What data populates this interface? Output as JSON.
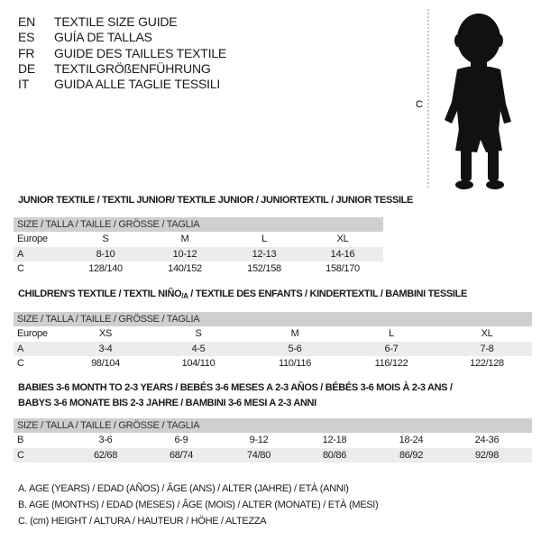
{
  "languages": [
    {
      "code": "EN",
      "text": "TEXTILE SIZE GUIDE"
    },
    {
      "code": "ES",
      "text": "GUÍA DE TALLAS"
    },
    {
      "code": "FR",
      "text": "GUIDE DES TAILLES TEXTILE"
    },
    {
      "code": "DE",
      "text": "TEXTILGRÖßENFÜHRUNG"
    },
    {
      "code": "IT",
      "text": "GUIDA ALLE TAGLIE TESSILI"
    }
  ],
  "figure": {
    "measure_label": "C",
    "icon": "child-silhouette"
  },
  "junior": {
    "title": "JUNIOR TEXTILE / TEXTIL JUNIOR/ TEXTILE JUNIOR / JUNIORTEXTIL / JUNIOR TESSILE",
    "header": "SIZE / TALLA / TAILLE / GRÖSSE / TAGLIA",
    "rows": [
      {
        "label": "Europe",
        "values": [
          "S",
          "M",
          "L",
          "XL"
        ]
      },
      {
        "label": "A",
        "values": [
          "8-10",
          "10-12",
          "12-13",
          "14-16"
        ]
      },
      {
        "label": "C",
        "values": [
          "128/140",
          "140/152",
          "152/158",
          "158/170"
        ]
      }
    ]
  },
  "children": {
    "title_a": "CHILDREN'S TEXTILE / TEXTIL NIÑO",
    "title_sub": "/A",
    "title_b": " / TEXTILE DES ENFANTS / KINDERTEXTIL / BAMBINI TESSILE",
    "header": "SIZE / TALLA / TAILLE / GRÖSSE / TAGLIA",
    "rows": [
      {
        "label": "Europe",
        "values": [
          "XS",
          "S",
          "M",
          "L",
          "XL"
        ]
      },
      {
        "label": "A",
        "values": [
          "3-4",
          "4-5",
          "5-6",
          "6-7",
          "7-8"
        ]
      },
      {
        "label": "C",
        "values": [
          "98/104",
          "104/110",
          "110/116",
          "116/122",
          "122/128"
        ]
      }
    ]
  },
  "babies": {
    "title_line1": "BABIES 3-6 MONTH TO 2-3 YEARS / BEBÉS 3-6 MESES A 2-3 AÑOS / BÉBÉS 3-6 MOIS À 2-3 ANS /",
    "title_line2": "BABYS 3-6 MONATE BIS 2-3 JAHRE / BAMBINI 3-6 MESI A 2-3 ANNI",
    "header": "SIZE / TALLA / TAILLE / GRÖSSE / TAGLIA",
    "rows": [
      {
        "label": "B",
        "values": [
          "3-6",
          "6-9",
          "9-12",
          "12-18",
          "18-24",
          "24-36"
        ]
      },
      {
        "label": "C",
        "values": [
          "62/68",
          "68/74",
          "74/80",
          "80/86",
          "86/92",
          "92/98"
        ]
      }
    ]
  },
  "legend": [
    "A. AGE (YEARS) / EDAD (AÑOS) / ÂGE (ANS) / ALTER (JAHRE) / ETÀ (ANNI)",
    "B. AGE (MONTHS) / EDAD (MESES) / ÂGE (MOIS) / ALTER (MONATE) / ETÀ (MESI)",
    "C. (cm) HEIGHT / ALTURA / HAUTEUR / HÖHE / ALTEZZA"
  ]
}
